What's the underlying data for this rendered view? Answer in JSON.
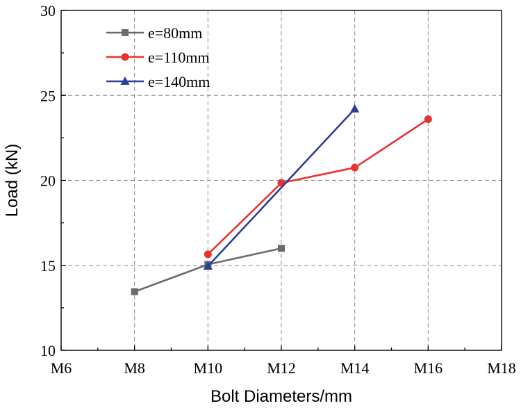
{
  "chart_data": {
    "type": "line",
    "title": "",
    "xlabel": "Bolt Diameters/mm",
    "ylabel": "Load (kN)",
    "categories": [
      "M6",
      "M8",
      "M10",
      "M12",
      "M14",
      "M16",
      "M18"
    ],
    "ylim": [
      10,
      30
    ],
    "yticks": [
      "10",
      "15",
      "20",
      "25",
      "30"
    ],
    "grid": true,
    "legend_position": "top-left",
    "series": [
      {
        "name": "e=80mm",
        "color": "#6b6b6b",
        "marker": "square",
        "x": [
          "M8",
          "M10",
          "M12"
        ],
        "values": [
          13.45,
          15.05,
          16.0
        ]
      },
      {
        "name": "e=110mm",
        "color": "#e8332e",
        "marker": "circle",
        "x": [
          "M10",
          "M12",
          "M14",
          "M16"
        ],
        "values": [
          15.65,
          19.85,
          20.75,
          23.6
        ]
      },
      {
        "name": "e=140mm",
        "color": "#2a3f96",
        "marker": "triangle",
        "x": [
          "M10",
          "M14"
        ],
        "values": [
          14.95,
          24.2
        ]
      }
    ]
  }
}
